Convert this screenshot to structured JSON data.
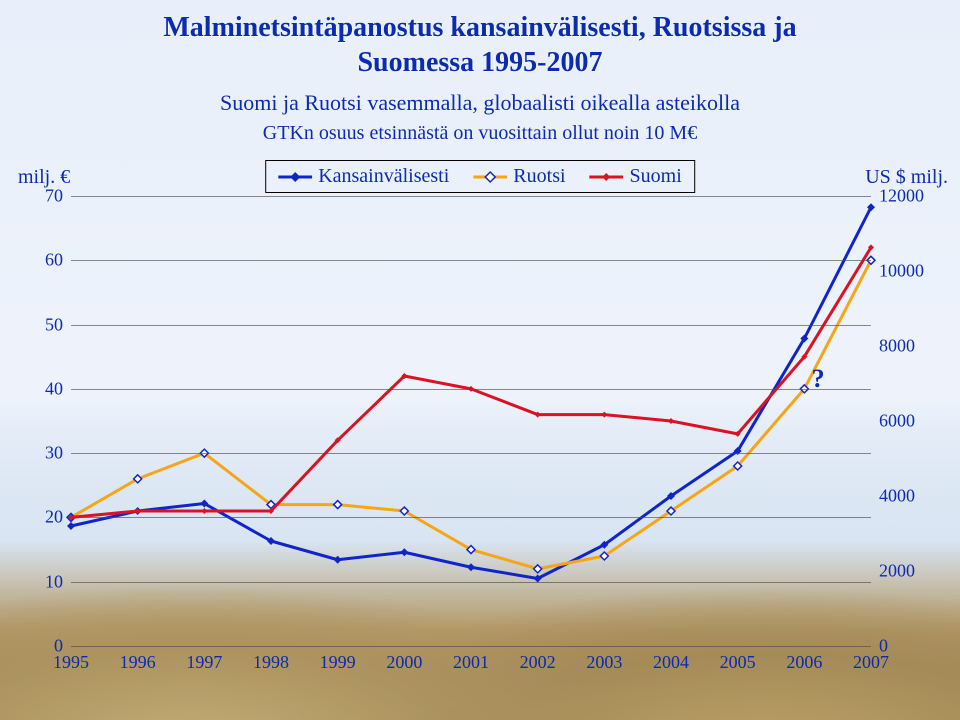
{
  "title_line1": "Malminetsintäpanostus kansainvälisesti, Ruotsissa ja",
  "title_line2": "Suomessa 1995-2007",
  "subtitle": "Suomi ja Ruotsi vasemmalla, globaalisti oikealla asteikolla",
  "note": "GTKn osuus etsinnästä on vuosittain ollut noin 10 M€",
  "y_left_label": "milj. €",
  "y_right_label": "US $ milj.",
  "question_mark": "?",
  "legend": {
    "kansainvalisesti": "Kansainvälisesti",
    "ruotsi": "Ruotsi",
    "suomi": "Suomi"
  },
  "chart": {
    "type": "line",
    "years": [
      1995,
      1996,
      1997,
      1998,
      1999,
      2000,
      2001,
      2002,
      2003,
      2004,
      2005,
      2006,
      2007
    ],
    "left_axis": {
      "min": 0,
      "max": 70,
      "step": 10
    },
    "right_axis": {
      "min": 0,
      "max": 12000,
      "step": 2000
    },
    "grid_color": "#4d4d4d",
    "background_color": "transparent",
    "series": {
      "kansainvalisesti": {
        "axis": "right",
        "color": "#1025c8",
        "line_width": 3,
        "marker": "diamond",
        "marker_size": 8,
        "values": [
          3200,
          3600,
          3800,
          2800,
          2300,
          2500,
          2100,
          1800,
          2700,
          4000,
          5200,
          8200,
          11700
        ]
      },
      "ruotsi": {
        "axis": "left",
        "color": "#f6a516",
        "line_width": 3,
        "marker": "diamond-outline",
        "marker_size": 8,
        "values": [
          20,
          26,
          30,
          22,
          22,
          21,
          15,
          12,
          14,
          21,
          28,
          40,
          60
        ]
      },
      "suomi": {
        "axis": "left",
        "color": "#d81323",
        "line_width": 3,
        "marker": "diamond",
        "marker_size": 6,
        "values": [
          20,
          21,
          21,
          21,
          32,
          42,
          40,
          36,
          36,
          35,
          33,
          45,
          62
        ]
      }
    },
    "qmark_pos": {
      "year_index": 11.2,
      "left_value": 41
    }
  }
}
